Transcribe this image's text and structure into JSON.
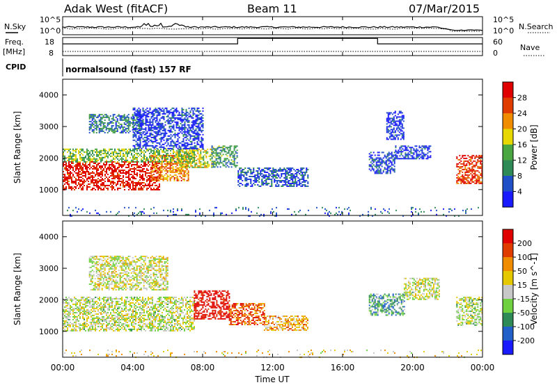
{
  "header": {
    "station": "Adak West (fitACF)",
    "beam": "Beam 11",
    "date": "07/Mar/2015"
  },
  "noise_panel": {
    "left_label": "N.Sky",
    "right_label": "N.Search",
    "y_top_left": "10^5",
    "y_bottom_left": "10^0",
    "y_top_right": "10^5",
    "y_bottom_right": "10^0"
  },
  "freq_panel": {
    "left_label_line1": "Freq.",
    "left_label_line2": "[MHz]",
    "right_label": "Nave",
    "left_ticks": [
      "18",
      "8"
    ],
    "right_ticks": [
      "60",
      "0"
    ],
    "freq_steps": [
      {
        "start_h": 0,
        "end_h": 10.0,
        "level": 0.35
      },
      {
        "start_h": 10.0,
        "end_h": 18.0,
        "level": 0.05
      },
      {
        "start_h": 18.0,
        "end_h": 24.0,
        "level": 0.35
      }
    ]
  },
  "cpid_panel": {
    "label": "CPID",
    "text": "normalsound (fast) 157 RF"
  },
  "chart_data": [
    {
      "type": "heatmap",
      "panel": "power",
      "xlabel": "Time UT",
      "ylabel": "Slant Range [km]",
      "xlim": [
        0,
        24
      ],
      "ylim": [
        180,
        4500
      ],
      "x_ticks": [
        "00:00",
        "04:00",
        "08:00",
        "12:00",
        "16:00",
        "20:00",
        "00:00"
      ],
      "y_ticks": [
        1000,
        2000,
        3000,
        4000
      ],
      "colorbar": {
        "label": "Power [dB]",
        "ticks": [
          "4",
          "8",
          "12",
          "16",
          "20",
          "24",
          "28"
        ],
        "colors": [
          "#1a1aff",
          "#2050c8",
          "#2e8b57",
          "#4aa640",
          "#e6d800",
          "#f08c00",
          "#e03c00",
          "#e00000"
        ]
      },
      "regions": [
        {
          "t0": 0.0,
          "t1": 5.5,
          "r0": 1000,
          "r1": 1900,
          "level": 0.92
        },
        {
          "t0": 5.0,
          "t1": 7.2,
          "r0": 1300,
          "r1": 2100,
          "level": 0.72
        },
        {
          "t0": 6.5,
          "t1": 8.5,
          "r0": 1700,
          "r1": 2300,
          "level": 0.55
        },
        {
          "t0": 0.0,
          "t1": 7.5,
          "r0": 1900,
          "r1": 2300,
          "level": 0.45
        },
        {
          "t0": 1.5,
          "t1": 4.5,
          "r0": 2800,
          "r1": 3400,
          "level": 0.28
        },
        {
          "t0": 4.0,
          "t1": 8.0,
          "r0": 2300,
          "r1": 3600,
          "level": 0.12
        },
        {
          "t0": 8.5,
          "t1": 10.0,
          "r0": 1700,
          "r1": 2400,
          "level": 0.35
        },
        {
          "t0": 10.0,
          "t1": 14.0,
          "r0": 1100,
          "r1": 1700,
          "level": 0.18
        },
        {
          "t0": 17.5,
          "t1": 19.0,
          "r0": 1500,
          "r1": 2200,
          "level": 0.15
        },
        {
          "t0": 19.0,
          "t1": 21.0,
          "r0": 2000,
          "r1": 2400,
          "level": 0.12
        },
        {
          "t0": 18.5,
          "t1": 19.5,
          "r0": 2600,
          "r1": 3500,
          "level": 0.1
        },
        {
          "t0": 22.5,
          "t1": 24.0,
          "r0": 1200,
          "r1": 2100,
          "level": 0.85
        },
        {
          "t0": 0.0,
          "t1": 24.0,
          "r0": 180,
          "r1": 450,
          "level": 0.2
        }
      ]
    },
    {
      "type": "heatmap",
      "panel": "velocity",
      "xlabel": "Time UT",
      "ylabel": "Slant Range [km]",
      "xlim": [
        0,
        24
      ],
      "ylim": [
        180,
        4500
      ],
      "x_ticks": [
        "00:00",
        "04:00",
        "08:00",
        "12:00",
        "16:00",
        "20:00",
        "00:00"
      ],
      "y_ticks": [
        1000,
        2000,
        3000,
        4000
      ],
      "colorbar": {
        "label": "Velocity [m s^-1]",
        "ticks": [
          "200",
          "100",
          "50",
          "15",
          "-15",
          "-50",
          "-100",
          "-200"
        ],
        "colors": [
          "#1a1aff",
          "#2060c8",
          "#2e8b57",
          "#6fd040",
          "#c8c8c8",
          "#e6c800",
          "#f08c00",
          "#e03c00",
          "#e00000"
        ]
      },
      "regions": [
        {
          "t0": 0.0,
          "t1": 7.5,
          "r0": 1000,
          "r1": 2100,
          "level": 0.5
        },
        {
          "t0": 1.5,
          "t1": 6.0,
          "r0": 2300,
          "r1": 3400,
          "level": 0.52
        },
        {
          "t0": 7.5,
          "t1": 9.5,
          "r0": 1400,
          "r1": 2300,
          "level": 0.97
        },
        {
          "t0": 9.5,
          "t1": 11.5,
          "r0": 1200,
          "r1": 1900,
          "level": 0.82
        },
        {
          "t0": 11.5,
          "t1": 14.0,
          "r0": 1050,
          "r1": 1500,
          "level": 0.66
        },
        {
          "t0": 17.5,
          "t1": 19.5,
          "r0": 1500,
          "r1": 2200,
          "level": 0.32
        },
        {
          "t0": 19.5,
          "t1": 21.5,
          "r0": 2000,
          "r1": 2700,
          "level": 0.5
        },
        {
          "t0": 22.5,
          "t1": 24.0,
          "r0": 1200,
          "r1": 2100,
          "level": 0.48
        },
        {
          "t0": 0.0,
          "t1": 24.0,
          "r0": 180,
          "r1": 420,
          "level": 0.6
        }
      ]
    }
  ]
}
